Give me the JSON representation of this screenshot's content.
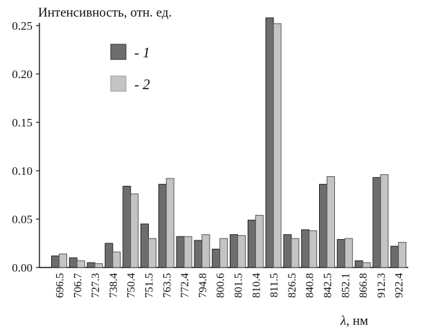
{
  "chart_data": {
    "type": "bar",
    "ylabel": "Интенсивность, отн. ед.",
    "xlabel_symbol": "λ",
    "xlabel_unit": ", нм",
    "ylim": [
      0,
      0.25
    ],
    "yticks": [
      "0.00",
      "0.05",
      "0.10",
      "0.15",
      "0.20",
      "0.25"
    ],
    "categories": [
      "696.5",
      "706.7",
      "727.3",
      "738.4",
      "750.4",
      "751.5",
      "763.5",
      "772.4",
      "794.8",
      "800.6",
      "801.5",
      "810.4",
      "811.5",
      "826.5",
      "840.8",
      "842.5",
      "852.1",
      "866.8",
      "912.3",
      "922.4"
    ],
    "series": [
      {
        "name": "1",
        "legend_prefix": "- ",
        "color": "#6d6d6d",
        "values": [
          0.012,
          0.01,
          0.005,
          0.025,
          0.084,
          0.045,
          0.086,
          0.032,
          0.028,
          0.019,
          0.034,
          0.049,
          0.258,
          0.034,
          0.039,
          0.086,
          0.029,
          0.007,
          0.093,
          0.022
        ]
      },
      {
        "name": "2",
        "legend_prefix": "- ",
        "color": "#c4c4c4",
        "values": [
          0.014,
          0.007,
          0.004,
          0.016,
          0.076,
          0.03,
          0.092,
          0.032,
          0.034,
          0.03,
          0.033,
          0.054,
          0.252,
          0.03,
          0.038,
          0.094,
          0.03,
          0.005,
          0.096,
          0.026
        ]
      }
    ],
    "legend_position": "top-left",
    "grid": false
  }
}
